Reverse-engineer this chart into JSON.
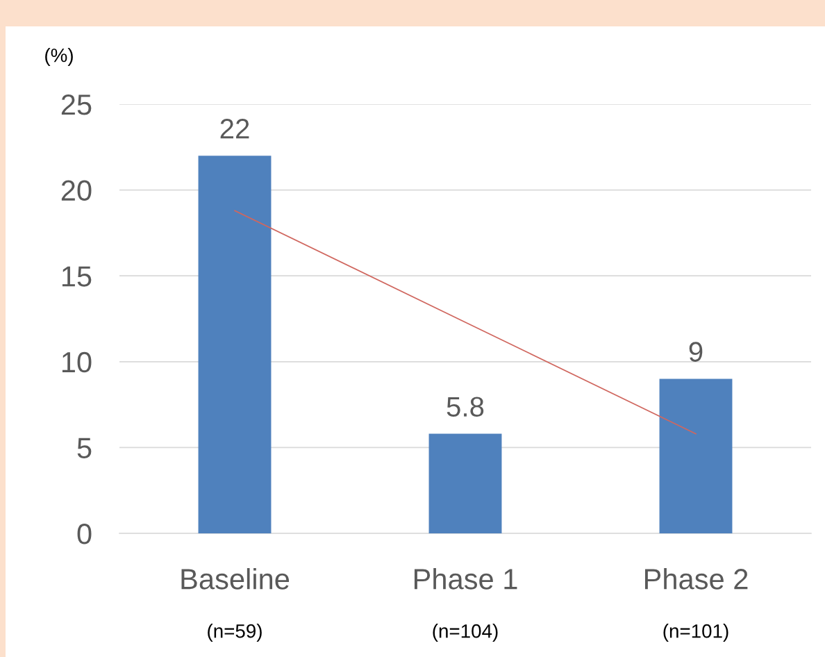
{
  "chart_data": {
    "type": "bar",
    "ylabel": "(%)",
    "categories": [
      "Baseline\n(n=59)",
      "Phase 1\n(n=104)",
      "Phase 2\n(n=101)"
    ],
    "series": [
      {
        "color": "#4f81bd",
        "values": [
          22,
          5.8,
          9
        ],
        "value_labels": [
          "22",
          "5.8",
          "9"
        ]
      },
      {
        "type": "line",
        "color": "#d0675f",
        "values": [
          18.8,
          12.3,
          5.8
        ]
      }
    ],
    "ylim": [
      0,
      25
    ],
    "yticks": [
      0,
      5,
      10,
      15,
      20,
      25
    ],
    "grid": "y"
  }
}
